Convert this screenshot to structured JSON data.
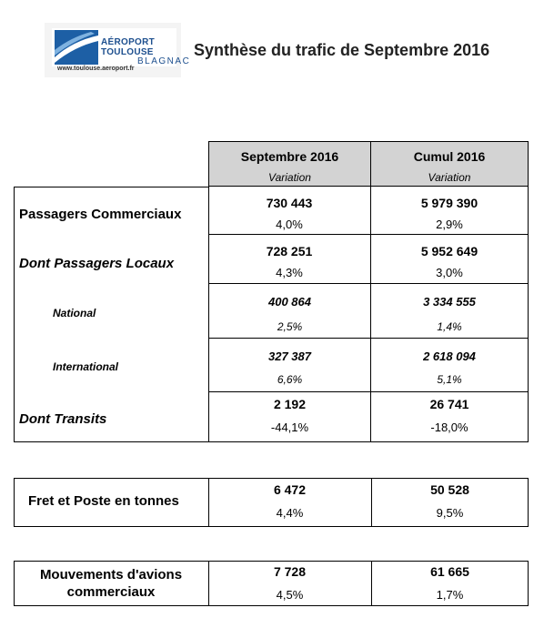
{
  "header": {
    "logo": {
      "line1": "AÉROPORT",
      "line2": "TOULOUSE",
      "line3": "BLAGNAC",
      "url": "www.toulouse.aeroport.fr"
    },
    "title": "Synthèse du trafic de Septembre 2016"
  },
  "table": {
    "columns": [
      {
        "label": "Septembre 2016",
        "sublabel": "Variation"
      },
      {
        "label": "Cumul 2016",
        "sublabel": "Variation"
      }
    ],
    "rows": [
      {
        "label": "Passagers Commerciaux",
        "col1": {
          "value": "730 443",
          "variation": "4,0%"
        },
        "col2": {
          "value": "5 979 390",
          "variation": "2,9%"
        }
      },
      {
        "label": "Dont Passagers Locaux",
        "col1": {
          "value": "728 251",
          "variation": "4,3%"
        },
        "col2": {
          "value": "5 952 649",
          "variation": "3,0%"
        }
      },
      {
        "label": "National",
        "col1": {
          "value": "400 864",
          "variation": "2,5%"
        },
        "col2": {
          "value": "3 334 555",
          "variation": "1,4%"
        }
      },
      {
        "label": "International",
        "col1": {
          "value": "327 387",
          "variation": "6,6%"
        },
        "col2": {
          "value": "2 618 094",
          "variation": "5,1%"
        }
      },
      {
        "label": "Dont Transits",
        "col1": {
          "value": "2 192",
          "variation": "-44,1%"
        },
        "col2": {
          "value": "26 741",
          "variation": "-18,0%"
        }
      }
    ],
    "fret": {
      "label": "Fret et Poste en tonnes",
      "col1": {
        "value": "6 472",
        "variation": "4,4%"
      },
      "col2": {
        "value": "50 528",
        "variation": "9,5%"
      }
    },
    "mouvements": {
      "label_line1": "Mouvements d'avions",
      "label_line2": "commerciaux",
      "col1": {
        "value": "7 728",
        "variation": "4,5%"
      },
      "col2": {
        "value": "61 665",
        "variation": "1,7%"
      }
    }
  }
}
